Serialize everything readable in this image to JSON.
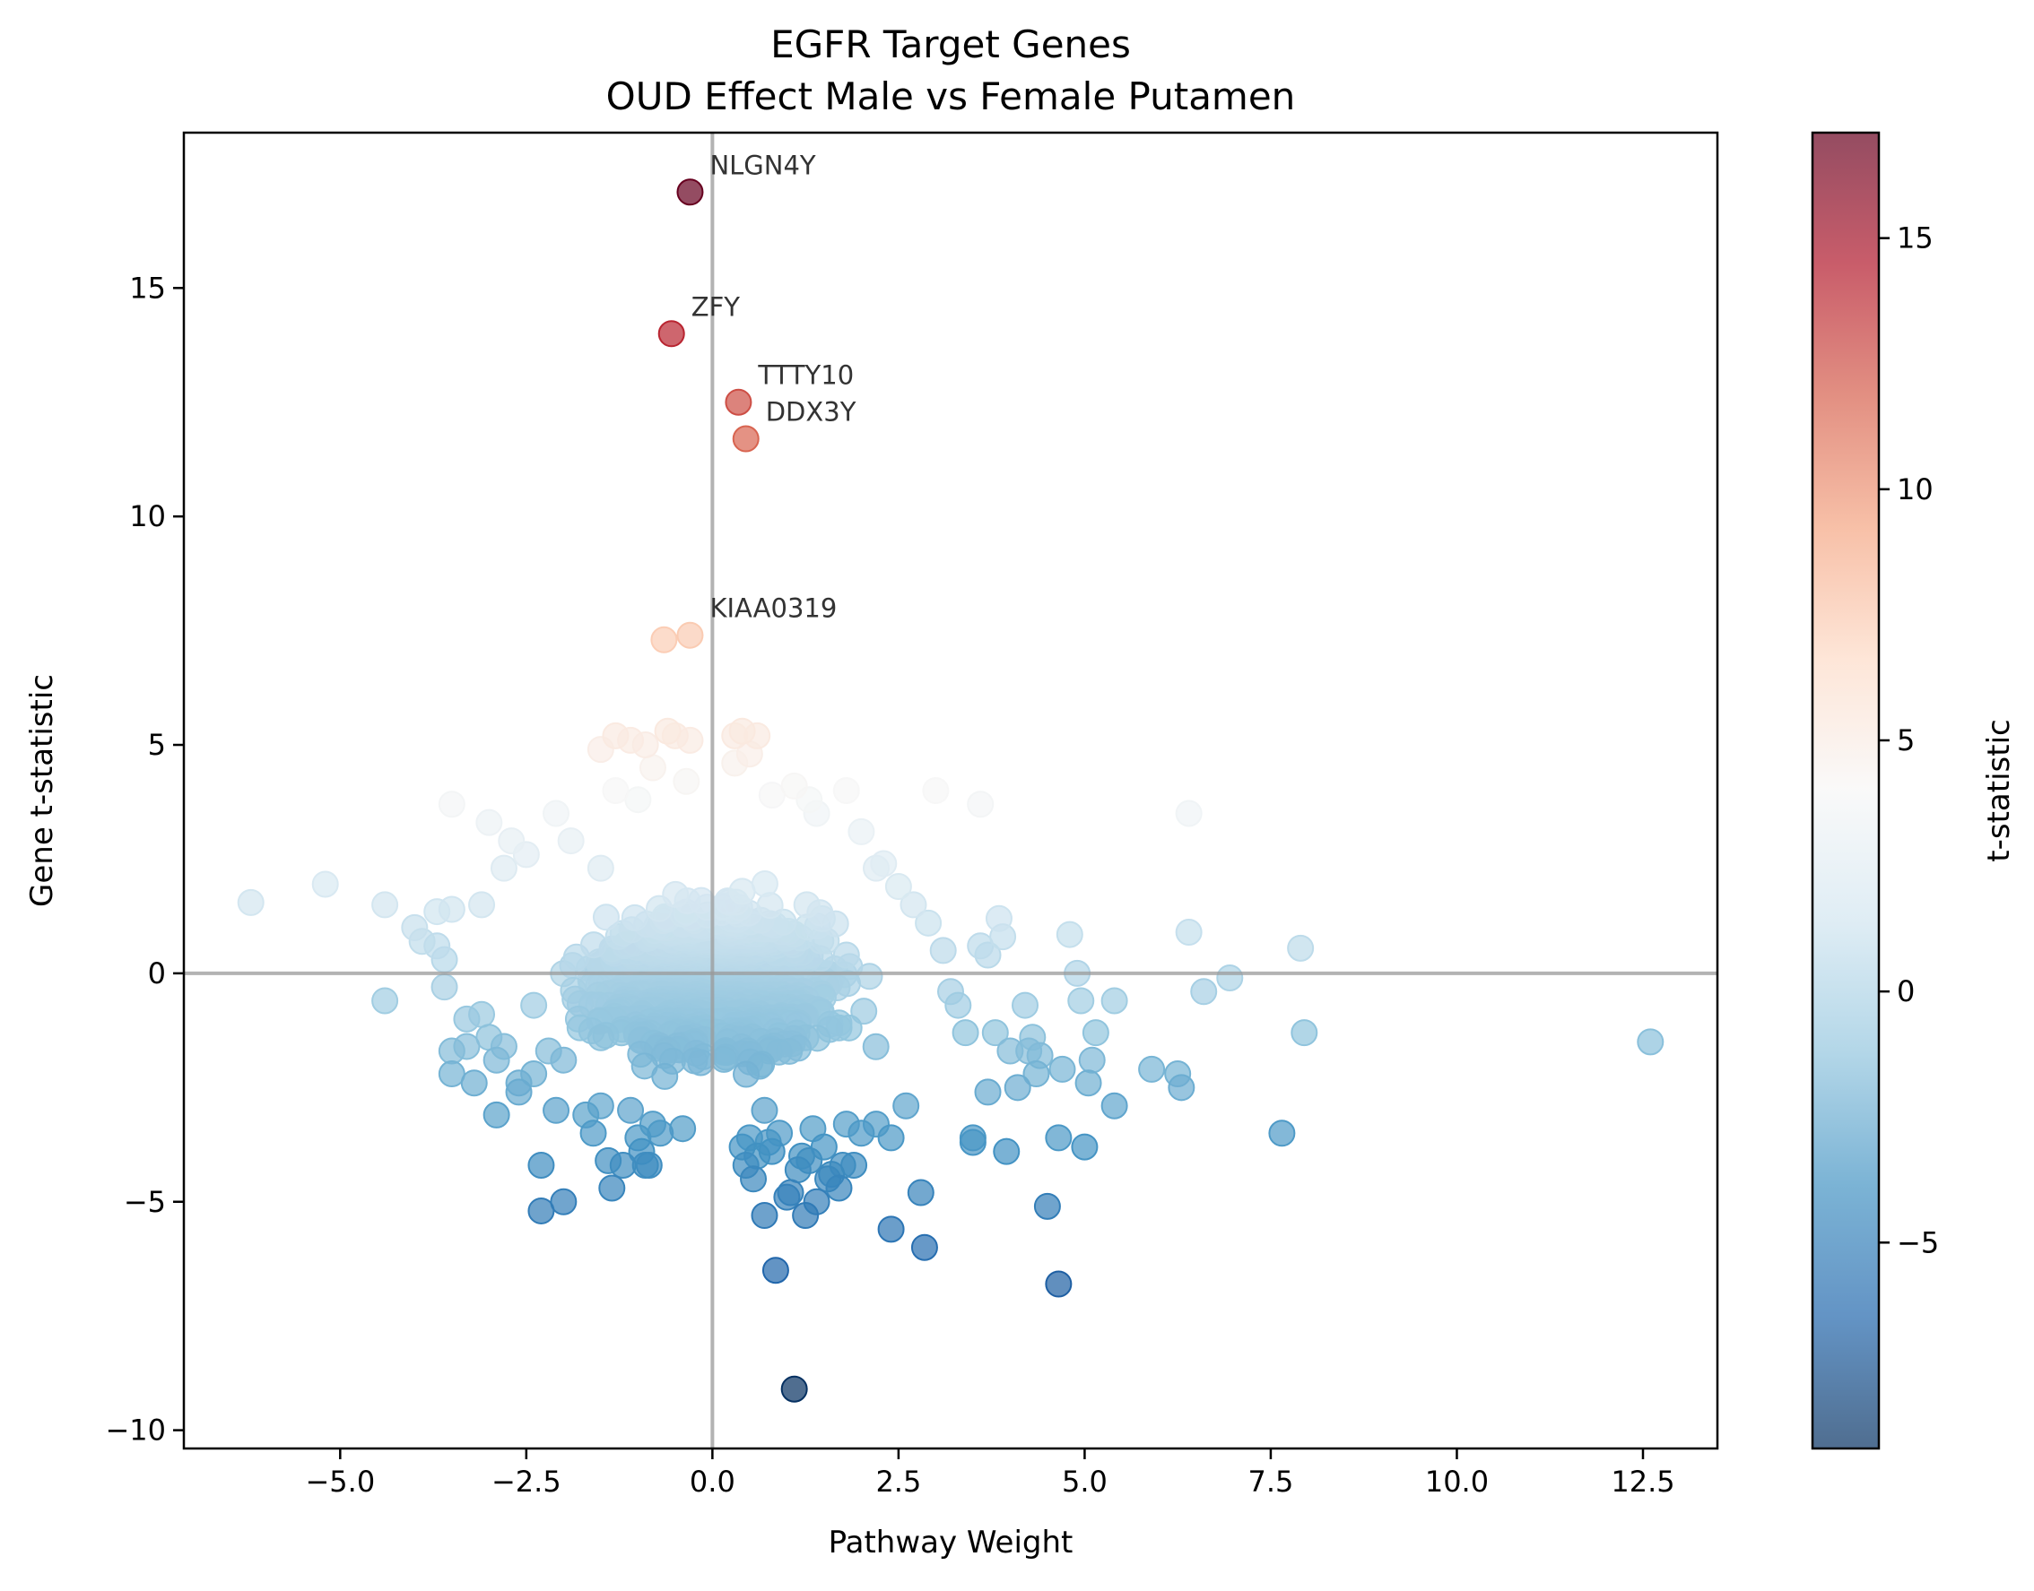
{
  "chart_data": {
    "type": "scatter",
    "title": [
      "EGFR Target Genes",
      "OUD Effect Male vs Female Putamen"
    ],
    "xlabel": "Pathway Weight",
    "ylabel": "Gene t-statistic",
    "colorbar_label": "t-statistic",
    "xlim": [
      -7.1,
      13.5
    ],
    "ylim": [
      -10.4,
      18.4
    ],
    "color_range": [
      -9.1,
      17.1
    ],
    "colormap": "RdBu_r",
    "x_ticks": [
      {
        "value": -5.0,
        "label": "−5.0"
      },
      {
        "value": -2.5,
        "label": "−2.5"
      },
      {
        "value": 0.0,
        "label": "0.0"
      },
      {
        "value": 2.5,
        "label": "2.5"
      },
      {
        "value": 5.0,
        "label": "5.0"
      },
      {
        "value": 7.5,
        "label": "7.5"
      },
      {
        "value": 10.0,
        "label": "10.0"
      },
      {
        "value": 12.5,
        "label": "12.5"
      }
    ],
    "y_ticks": [
      {
        "value": -10,
        "label": "−10"
      },
      {
        "value": -5,
        "label": "−5"
      },
      {
        "value": 0,
        "label": "0"
      },
      {
        "value": 5,
        "label": "5"
      },
      {
        "value": 10,
        "label": "10"
      },
      {
        "value": 15,
        "label": "15"
      }
    ],
    "colorbar_ticks": [
      {
        "value": -5,
        "label": "−5"
      },
      {
        "value": 0,
        "label": "0"
      },
      {
        "value": 5,
        "label": "5"
      },
      {
        "value": 10,
        "label": "10"
      },
      {
        "value": 15,
        "label": "15"
      }
    ],
    "reference_lines": {
      "x": 0,
      "y": 0
    },
    "labeled_points": [
      {
        "x": -0.3,
        "y": 17.1,
        "label": "NLGN4Y"
      },
      {
        "x": -0.55,
        "y": 14.0,
        "label": "ZFY"
      },
      {
        "x": 0.35,
        "y": 12.5,
        "label": "TTTY10"
      },
      {
        "x": 0.45,
        "y": 11.7,
        "label": "DDX3Y"
      },
      {
        "x": -0.3,
        "y": 7.4,
        "label": "KIAA0319"
      }
    ],
    "points": [
      [
        -0.65,
        7.3
      ],
      [
        -0.6,
        5.3
      ],
      [
        -0.3,
        5.1
      ],
      [
        -1.3,
        5.2
      ],
      [
        -1.1,
        5.1
      ],
      [
        -0.5,
        5.2
      ],
      [
        0.4,
        5.3
      ],
      [
        0.6,
        5.2
      ],
      [
        0.3,
        5.2
      ],
      [
        0.5,
        4.8
      ],
      [
        -0.9,
        5.0
      ],
      [
        -1.5,
        4.9
      ],
      [
        -6.2,
        1.55
      ],
      [
        -5.2,
        1.95
      ],
      [
        -4.4,
        1.5
      ],
      [
        -4.4,
        -0.6
      ],
      [
        -4.0,
        1.0
      ],
      [
        -3.9,
        0.7
      ],
      [
        -3.7,
        1.35
      ],
      [
        -3.7,
        0.6
      ],
      [
        -3.6,
        0.3
      ],
      [
        -3.6,
        -0.3
      ],
      [
        -3.5,
        3.7
      ],
      [
        -3.5,
        1.4
      ],
      [
        -3.5,
        -1.7
      ],
      [
        -3.5,
        -2.2
      ],
      [
        -3.3,
        -1.0
      ],
      [
        -3.3,
        -1.6
      ],
      [
        -3.2,
        -2.4
      ],
      [
        -3.1,
        1.5
      ],
      [
        -3.1,
        -0.9
      ],
      [
        -3.0,
        3.3
      ],
      [
        -3.0,
        -1.4
      ],
      [
        -2.9,
        -1.9
      ],
      [
        -2.9,
        -3.1
      ],
      [
        -2.8,
        2.3
      ],
      [
        -2.8,
        -1.6
      ],
      [
        -2.7,
        2.9
      ],
      [
        -2.6,
        -2.4
      ],
      [
        -2.6,
        -2.6
      ],
      [
        -2.5,
        2.6
      ],
      [
        -2.4,
        -0.7
      ],
      [
        -2.4,
        -2.2
      ],
      [
        -2.3,
        -4.2
      ],
      [
        -2.3,
        -5.2
      ],
      [
        -2.2,
        -1.7
      ],
      [
        -2.1,
        3.5
      ],
      [
        -2.1,
        -3.0
      ],
      [
        -2.0,
        -1.9
      ],
      [
        -2.0,
        -5.0
      ],
      [
        -1.9,
        2.9
      ],
      [
        -1.8,
        -1.0
      ],
      [
        -1.7,
        -3.1
      ],
      [
        -1.6,
        -3.5
      ],
      [
        -1.5,
        2.3
      ],
      [
        -1.5,
        -2.9
      ],
      [
        -1.4,
        -4.1
      ],
      [
        -1.35,
        -4.7
      ],
      [
        -1.2,
        -4.2
      ],
      [
        -1.1,
        -3.0
      ],
      [
        -1.0,
        -3.6
      ],
      [
        -0.95,
        -3.9
      ],
      [
        -0.9,
        -4.2
      ],
      [
        -0.85,
        -4.2
      ],
      [
        -0.8,
        -3.3
      ],
      [
        -0.7,
        -3.5
      ],
      [
        -0.4,
        -3.4
      ],
      [
        -0.35,
        4.2
      ],
      [
        -1.3,
        4.0
      ],
      [
        -0.8,
        4.5
      ],
      [
        -1.0,
        3.8
      ],
      [
        0.3,
        4.6
      ],
      [
        0.4,
        -3.8
      ],
      [
        0.45,
        -4.2
      ],
      [
        0.5,
        -3.6
      ],
      [
        0.55,
        -4.5
      ],
      [
        0.6,
        -4.0
      ],
      [
        0.7,
        -5.3
      ],
      [
        0.7,
        -3.0
      ],
      [
        0.75,
        -3.7
      ],
      [
        0.8,
        -3.9
      ],
      [
        0.85,
        -6.5
      ],
      [
        0.9,
        -3.5
      ],
      [
        1.0,
        -4.9
      ],
      [
        1.05,
        -4.8
      ],
      [
        1.1,
        -9.1
      ],
      [
        1.15,
        -4.3
      ],
      [
        1.2,
        -4.0
      ],
      [
        1.25,
        -5.3
      ],
      [
        1.3,
        -4.1
      ],
      [
        1.35,
        -3.4
      ],
      [
        1.4,
        -5.0
      ],
      [
        1.5,
        -3.8
      ],
      [
        1.55,
        -4.5
      ],
      [
        1.6,
        -4.4
      ],
      [
        1.7,
        -4.7
      ],
      [
        1.75,
        -4.2
      ],
      [
        1.8,
        -3.3
      ],
      [
        1.8,
        4.0
      ],
      [
        1.3,
        3.8
      ],
      [
        1.1,
        4.1
      ],
      [
        1.4,
        3.5
      ],
      [
        0.8,
        3.9
      ],
      [
        2.0,
        3.1
      ],
      [
        2.2,
        2.3
      ],
      [
        2.3,
        2.4
      ],
      [
        2.5,
        1.9
      ],
      [
        2.7,
        1.5
      ],
      [
        2.9,
        1.1
      ],
      [
        3.0,
        4.0
      ],
      [
        3.1,
        0.5
      ],
      [
        3.2,
        -0.4
      ],
      [
        3.3,
        -0.7
      ],
      [
        3.4,
        -1.3
      ],
      [
        3.5,
        -3.6
      ],
      [
        3.5,
        -3.7
      ],
      [
        3.6,
        3.7
      ],
      [
        3.6,
        0.6
      ],
      [
        3.7,
        0.4
      ],
      [
        3.7,
        -2.6
      ],
      [
        3.8,
        -1.3
      ],
      [
        3.85,
        1.2
      ],
      [
        3.9,
        0.8
      ],
      [
        3.95,
        -3.9
      ],
      [
        4.0,
        -1.7
      ],
      [
        4.1,
        -2.5
      ],
      [
        4.2,
        -0.7
      ],
      [
        4.25,
        -1.7
      ],
      [
        4.3,
        -1.4
      ],
      [
        4.35,
        -2.2
      ],
      [
        4.4,
        -1.8
      ],
      [
        4.5,
        -5.1
      ],
      [
        4.65,
        -3.6
      ],
      [
        4.65,
        -6.8
      ],
      [
        4.7,
        -2.1
      ],
      [
        4.8,
        0.85
      ],
      [
        4.9,
        0.0
      ],
      [
        4.95,
        -0.6
      ],
      [
        5.0,
        -3.8
      ],
      [
        5.05,
        -2.4
      ],
      [
        5.1,
        -1.9
      ],
      [
        5.15,
        -1.3
      ],
      [
        5.4,
        -0.6
      ],
      [
        5.4,
        -2.9
      ],
      [
        5.9,
        -2.1
      ],
      [
        6.25,
        -2.2
      ],
      [
        6.3,
        -2.5
      ],
      [
        6.4,
        3.5
      ],
      [
        6.4,
        0.9
      ],
      [
        6.6,
        -0.4
      ],
      [
        6.95,
        -0.1
      ],
      [
        7.65,
        -3.5
      ],
      [
        7.9,
        0.55
      ],
      [
        7.95,
        -1.3
      ],
      [
        12.6,
        -1.5
      ],
      [
        2.4,
        -3.6
      ],
      [
        2.4,
        -5.6
      ],
      [
        2.8,
        -4.8
      ],
      [
        2.85,
        -6.0
      ],
      [
        2.2,
        -3.3
      ],
      [
        2.6,
        -2.9
      ],
      [
        2.0,
        -3.5
      ],
      [
        1.9,
        -4.2
      ]
    ]
  }
}
